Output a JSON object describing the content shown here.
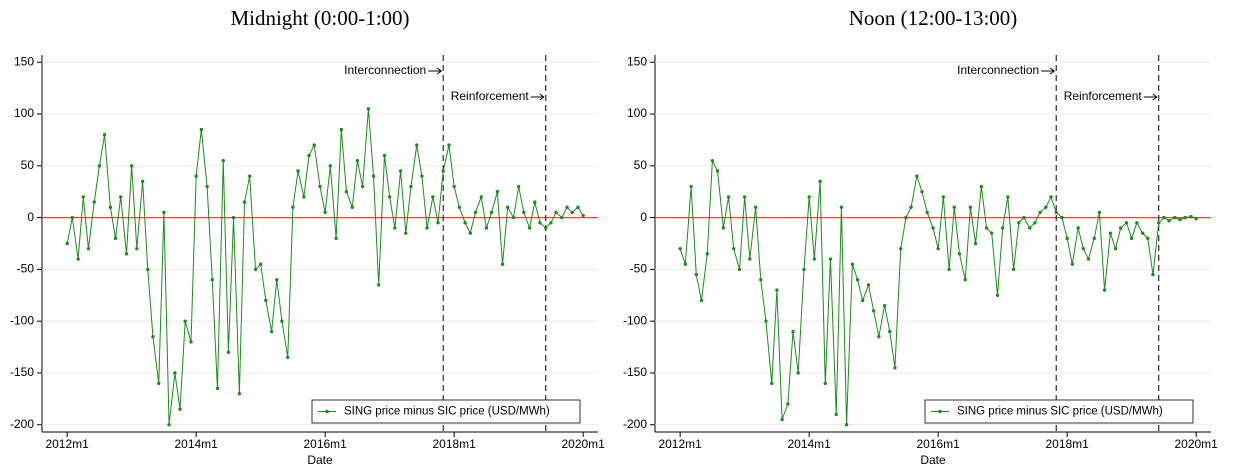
{
  "chart_data": [
    {
      "type": "line",
      "title": "Midnight (0:00-1:00)",
      "xlabel": "Date",
      "x": [
        2012,
        2012.08,
        2012.17,
        2012.25,
        2012.33,
        2012.42,
        2012.5,
        2012.58,
        2012.67,
        2012.75,
        2012.83,
        2012.92,
        2013,
        2013.08,
        2013.17,
        2013.25,
        2013.33,
        2013.42,
        2013.5,
        2013.58,
        2013.67,
        2013.75,
        2013.83,
        2013.92,
        2014,
        2014.08,
        2014.17,
        2014.25,
        2014.33,
        2014.42,
        2014.5,
        2014.58,
        2014.67,
        2014.75,
        2014.83,
        2014.92,
        2015,
        2015.08,
        2015.17,
        2015.25,
        2015.33,
        2015.42,
        2015.5,
        2015.58,
        2015.67,
        2015.75,
        2015.83,
        2015.92,
        2016,
        2016.08,
        2016.17,
        2016.25,
        2016.33,
        2016.42,
        2016.5,
        2016.58,
        2016.67,
        2016.75,
        2016.83,
        2016.92,
        2017,
        2017.08,
        2017.17,
        2017.25,
        2017.33,
        2017.42,
        2017.5,
        2017.58,
        2017.67,
        2017.75,
        2017.83,
        2017.92,
        2018,
        2018.08,
        2018.17,
        2018.25,
        2018.33,
        2018.42,
        2018.5,
        2018.58,
        2018.67,
        2018.75,
        2018.83,
        2018.92,
        2019,
        2019.08,
        2019.17,
        2019.25,
        2019.33,
        2019.42,
        2019.5,
        2019.58,
        2019.67,
        2019.75,
        2019.83,
        2019.92,
        2020
      ],
      "series": [
        {
          "name": "SING price minus SIC price (USD/MWh)",
          "color": "#1f8a1f",
          "values": [
            -25,
            0,
            -40,
            20,
            -30,
            15,
            50,
            80,
            10,
            -20,
            20,
            -35,
            50,
            -30,
            35,
            -50,
            -115,
            -160,
            5,
            -200,
            -150,
            -185,
            -100,
            -120,
            40,
            85,
            30,
            -60,
            -165,
            55,
            -130,
            0,
            -170,
            15,
            40,
            -50,
            -45,
            -80,
            -110,
            -60,
            -100,
            -135,
            10,
            45,
            20,
            60,
            70,
            30,
            5,
            50,
            -20,
            85,
            25,
            10,
            55,
            30,
            105,
            40,
            -65,
            60,
            20,
            -10,
            45,
            -15,
            30,
            70,
            40,
            -10,
            20,
            -5,
            45,
            70,
            30,
            10,
            -5,
            -15,
            5,
            20,
            -10,
            5,
            25,
            -45,
            10,
            0,
            30,
            5,
            -10,
            15,
            -5,
            -10,
            -5,
            5,
            0,
            10,
            5,
            10,
            2
          ]
        }
      ],
      "reference_line": {
        "y": 0,
        "color": "#e8453c"
      },
      "events": [
        {
          "x": 2017.83,
          "label": "Interconnection"
        },
        {
          "x": 2019.42,
          "label": "Reinforcement"
        }
      ],
      "xlim": [
        2011.61,
        2020.23
      ],
      "xticks": [
        {
          "value": 2012,
          "label": "2012m1"
        },
        {
          "value": 2014,
          "label": "2014m1"
        },
        {
          "value": 2016,
          "label": "2016m1"
        },
        {
          "value": 2018,
          "label": "2018m1"
        },
        {
          "value": 2020,
          "label": "2020m1"
        }
      ],
      "ylim": [
        -207,
        157
      ],
      "yticks": [
        -200,
        -150,
        -100,
        -50,
        0,
        50,
        100,
        150
      ],
      "grid": true,
      "legend": "lower right"
    },
    {
      "type": "line",
      "title": "Noon (12:00-13:00)",
      "xlabel": "Date",
      "x": [
        2012,
        2012.08,
        2012.17,
        2012.25,
        2012.33,
        2012.42,
        2012.5,
        2012.58,
        2012.67,
        2012.75,
        2012.83,
        2012.92,
        2013,
        2013.08,
        2013.17,
        2013.25,
        2013.33,
        2013.42,
        2013.5,
        2013.58,
        2013.67,
        2013.75,
        2013.83,
        2013.92,
        2014,
        2014.08,
        2014.17,
        2014.25,
        2014.33,
        2014.42,
        2014.5,
        2014.58,
        2014.67,
        2014.75,
        2014.83,
        2014.92,
        2015,
        2015.08,
        2015.17,
        2015.25,
        2015.33,
        2015.42,
        2015.5,
        2015.58,
        2015.67,
        2015.75,
        2015.83,
        2015.92,
        2016,
        2016.08,
        2016.17,
        2016.25,
        2016.33,
        2016.42,
        2016.5,
        2016.58,
        2016.67,
        2016.75,
        2016.83,
        2016.92,
        2017,
        2017.08,
        2017.17,
        2017.25,
        2017.33,
        2017.42,
        2017.5,
        2017.58,
        2017.67,
        2017.75,
        2017.83,
        2017.92,
        2018,
        2018.08,
        2018.17,
        2018.25,
        2018.33,
        2018.42,
        2018.5,
        2018.58,
        2018.67,
        2018.75,
        2018.83,
        2018.92,
        2019,
        2019.08,
        2019.17,
        2019.25,
        2019.33,
        2019.42,
        2019.5,
        2019.58,
        2019.67,
        2019.75,
        2019.83,
        2019.92,
        2020
      ],
      "series": [
        {
          "name": "SING price minus SIC price (USD/MWh)",
          "color": "#1f8a1f",
          "values": [
            -30,
            -45,
            30,
            -55,
            -80,
            -35,
            55,
            45,
            -10,
            20,
            -30,
            -50,
            20,
            -40,
            10,
            -60,
            -100,
            -160,
            -70,
            -195,
            -180,
            -110,
            -150,
            -50,
            20,
            -40,
            35,
            -160,
            -40,
            -190,
            10,
            -200,
            -45,
            -60,
            -80,
            -65,
            -90,
            -115,
            -85,
            -110,
            -145,
            -30,
            0,
            10,
            40,
            25,
            5,
            -10,
            -30,
            20,
            -50,
            10,
            -35,
            -60,
            10,
            -25,
            30,
            -10,
            -15,
            -75,
            -10,
            20,
            -50,
            -5,
            0,
            -10,
            -5,
            5,
            10,
            20,
            5,
            0,
            -20,
            -45,
            -10,
            -30,
            -40,
            -20,
            5,
            -70,
            -15,
            -30,
            -10,
            -5,
            -20,
            -5,
            -15,
            -20,
            -55,
            -5,
            0,
            -3,
            0,
            -2,
            0,
            1,
            -1
          ]
        }
      ],
      "reference_line": {
        "y": 0,
        "color": "#e8453c"
      },
      "events": [
        {
          "x": 2017.83,
          "label": "Interconnection"
        },
        {
          "x": 2019.42,
          "label": "Reinforcement"
        }
      ],
      "xlim": [
        2011.61,
        2020.23
      ],
      "xticks": [
        {
          "value": 2012,
          "label": "2012m1"
        },
        {
          "value": 2014,
          "label": "2014m1"
        },
        {
          "value": 2016,
          "label": "2016m1"
        },
        {
          "value": 2018,
          "label": "2018m1"
        },
        {
          "value": 2020,
          "label": "2020m1"
        }
      ],
      "ylim": [
        -207,
        157
      ],
      "yticks": [
        -200,
        -150,
        -100,
        -50,
        0,
        50,
        100,
        150
      ],
      "grid": true,
      "legend": "lower right"
    }
  ]
}
